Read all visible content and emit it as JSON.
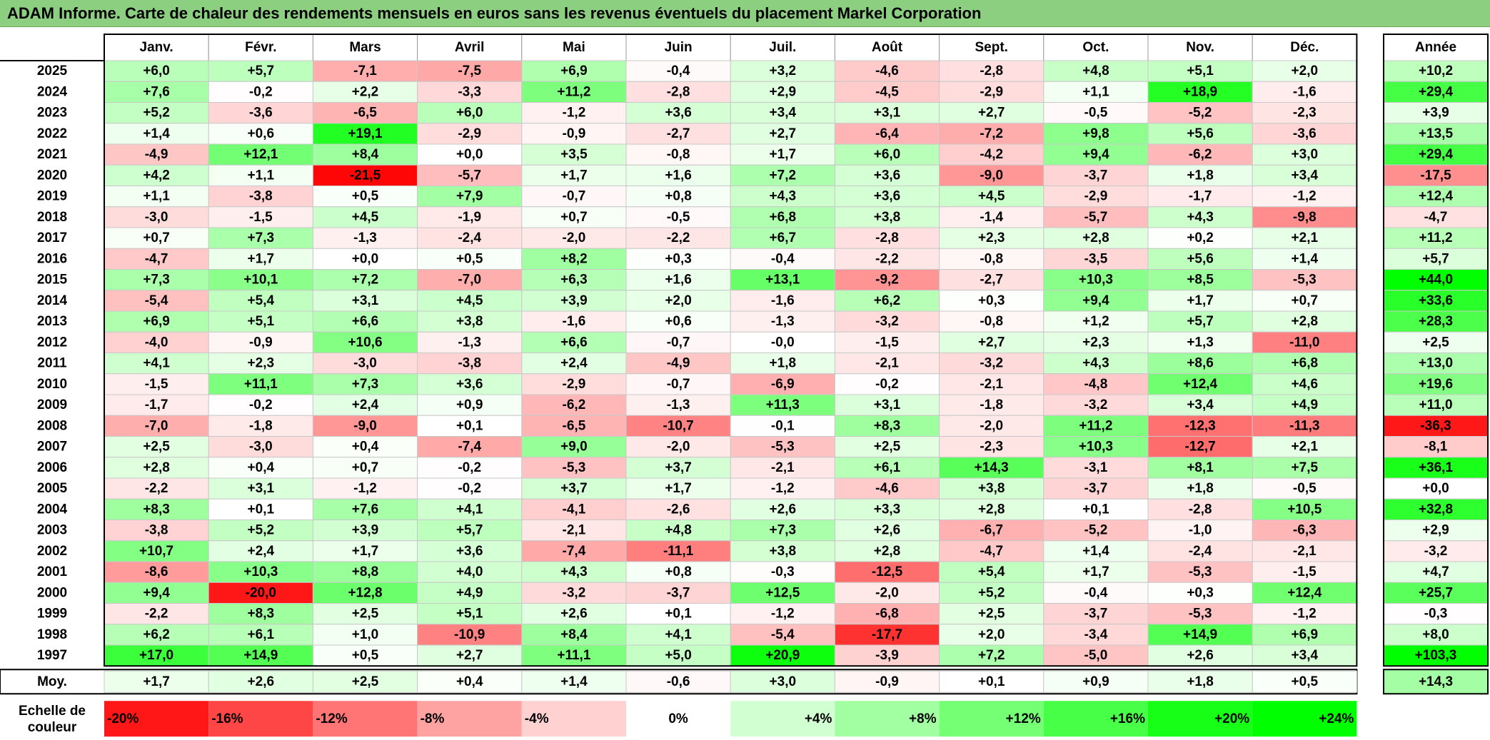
{
  "title": "ADAM Informe. Carte de chaleur des rendements mensuels en euros sans les revenus éventuels du placement Markel Corporation",
  "chart_data": {
    "type": "heatmap",
    "title": "ADAM Informe. Carte de chaleur des rendements mensuels en euros sans les revenus éventuels du placement Markel Corporation",
    "months": [
      "Janv.",
      "Févr.",
      "Mars",
      "Avril",
      "Mai",
      "Juin",
      "Juil.",
      "Août",
      "Sept.",
      "Oct.",
      "Nov.",
      "Déc."
    ],
    "year_header": "Année",
    "rows": [
      {
        "year": "2025",
        "values": [
          "+6,0",
          "+5,7",
          "-7,1",
          "-7,5",
          "+6,9",
          "-0,4",
          "+3,2",
          "-4,6",
          "-2,8",
          "+4,8",
          "+5,1",
          "+2,0"
        ],
        "annual": "+10,2"
      },
      {
        "year": "2024",
        "values": [
          "+7,6",
          "-0,2",
          "+2,2",
          "-3,3",
          "+11,2",
          "-2,8",
          "+2,9",
          "-4,5",
          "-2,9",
          "+1,1",
          "+18,9",
          "-1,6"
        ],
        "annual": "+29,4"
      },
      {
        "year": "2023",
        "values": [
          "+5,2",
          "-3,6",
          "-6,5",
          "+6,0",
          "-1,2",
          "+3,6",
          "+3,4",
          "+3,1",
          "+2,7",
          "-0,5",
          "-5,2",
          "-2,3"
        ],
        "annual": "+3,9"
      },
      {
        "year": "2022",
        "values": [
          "+1,4",
          "+0,6",
          "+19,1",
          "-2,9",
          "-0,9",
          "-2,7",
          "+2,7",
          "-6,4",
          "-7,2",
          "+9,8",
          "+5,6",
          "-3,6"
        ],
        "annual": "+13,5"
      },
      {
        "year": "2021",
        "values": [
          "-4,9",
          "+12,1",
          "+8,4",
          "+0,0",
          "+3,5",
          "-0,8",
          "+1,7",
          "+6,0",
          "-4,2",
          "+9,4",
          "-6,2",
          "+3,0"
        ],
        "annual": "+29,4"
      },
      {
        "year": "2020",
        "values": [
          "+4,2",
          "+1,1",
          "-21,5",
          "-5,7",
          "+1,7",
          "+1,6",
          "+7,2",
          "+3,6",
          "-9,0",
          "-3,7",
          "+1,8",
          "+3,4"
        ],
        "annual": "-17,5"
      },
      {
        "year": "2019",
        "values": [
          "+1,1",
          "-3,8",
          "+0,5",
          "+7,9",
          "-0,7",
          "+0,8",
          "+4,3",
          "+3,6",
          "+4,5",
          "-2,9",
          "-1,7",
          "-1,2"
        ],
        "annual": "+12,4"
      },
      {
        "year": "2018",
        "values": [
          "-3,0",
          "-1,5",
          "+4,5",
          "-1,9",
          "+0,7",
          "-0,5",
          "+6,8",
          "+3,8",
          "-1,4",
          "-5,7",
          "+4,3",
          "-9,8"
        ],
        "annual": "-4,7"
      },
      {
        "year": "2017",
        "values": [
          "+0,7",
          "+7,3",
          "-1,3",
          "-2,4",
          "-2,0",
          "-2,2",
          "+6,7",
          "-2,8",
          "+2,3",
          "+2,8",
          "+0,2",
          "+2,1"
        ],
        "annual": "+11,2"
      },
      {
        "year": "2016",
        "values": [
          "-4,7",
          "+1,7",
          "+0,0",
          "+0,5",
          "+8,2",
          "+0,3",
          "-0,4",
          "-2,2",
          "-0,8",
          "-3,5",
          "+5,6",
          "+1,4"
        ],
        "annual": "+5,7"
      },
      {
        "year": "2015",
        "values": [
          "+7,3",
          "+10,1",
          "+7,2",
          "-7,0",
          "+6,3",
          "+1,6",
          "+13,1",
          "-9,2",
          "-2,7",
          "+10,3",
          "+8,5",
          "-5,3"
        ],
        "annual": "+44,0"
      },
      {
        "year": "2014",
        "values": [
          "-5,4",
          "+5,4",
          "+3,1",
          "+4,5",
          "+3,9",
          "+2,0",
          "-1,6",
          "+6,2",
          "+0,3",
          "+9,4",
          "+1,7",
          "+0,7"
        ],
        "annual": "+33,6"
      },
      {
        "year": "2013",
        "values": [
          "+6,9",
          "+5,1",
          "+6,6",
          "+3,8",
          "-1,6",
          "+0,6",
          "-1,3",
          "-3,2",
          "-0,8",
          "+1,2",
          "+5,7",
          "+2,8"
        ],
        "annual": "+28,3"
      },
      {
        "year": "2012",
        "values": [
          "-4,0",
          "-0,9",
          "+10,6",
          "-1,3",
          "+6,6",
          "-0,7",
          "-0,0",
          "-1,5",
          "+2,7",
          "+2,3",
          "+1,3",
          "-11,0"
        ],
        "annual": "+2,5"
      },
      {
        "year": "2011",
        "values": [
          "+4,1",
          "+2,3",
          "-3,0",
          "-3,8",
          "+2,4",
          "-4,9",
          "+1,8",
          "-2,1",
          "-3,2",
          "+4,3",
          "+8,6",
          "+6,8"
        ],
        "annual": "+13,0"
      },
      {
        "year": "2010",
        "values": [
          "-1,5",
          "+11,1",
          "+7,3",
          "+3,6",
          "-2,9",
          "-0,7",
          "-6,9",
          "-0,2",
          "-2,1",
          "-4,8",
          "+12,4",
          "+4,6"
        ],
        "annual": "+19,6"
      },
      {
        "year": "2009",
        "values": [
          "-1,7",
          "-0,2",
          "+2,4",
          "+0,9",
          "-6,2",
          "-1,3",
          "+11,3",
          "+3,1",
          "-1,8",
          "-3,2",
          "+3,4",
          "+4,9"
        ],
        "annual": "+11,0"
      },
      {
        "year": "2008",
        "values": [
          "-7,0",
          "-1,8",
          "-9,0",
          "+0,1",
          "-6,5",
          "-10,7",
          "-0,1",
          "+8,3",
          "-2,0",
          "+11,2",
          "-12,3",
          "-11,3"
        ],
        "annual": "-36,3"
      },
      {
        "year": "2007",
        "values": [
          "+2,5",
          "-3,0",
          "+0,4",
          "-7,4",
          "+9,0",
          "-2,0",
          "-5,3",
          "+2,5",
          "-2,3",
          "+10,3",
          "-12,7",
          "+2,1"
        ],
        "annual": "-8,1"
      },
      {
        "year": "2006",
        "values": [
          "+2,8",
          "+0,4",
          "+0,7",
          "-0,2",
          "-5,3",
          "+3,7",
          "-2,1",
          "+6,1",
          "+14,3",
          "-3,1",
          "+8,1",
          "+7,5"
        ],
        "annual": "+36,1"
      },
      {
        "year": "2005",
        "values": [
          "-2,2",
          "+3,1",
          "-1,2",
          "-0,2",
          "+3,7",
          "+1,7",
          "-1,2",
          "-4,6",
          "+3,8",
          "-3,7",
          "+1,8",
          "-0,5"
        ],
        "annual": "+0,0"
      },
      {
        "year": "2004",
        "values": [
          "+8,3",
          "+0,1",
          "+7,6",
          "+4,1",
          "-4,1",
          "-2,6",
          "+2,6",
          "+3,3",
          "+2,8",
          "+0,1",
          "-2,8",
          "+10,5"
        ],
        "annual": "+32,8"
      },
      {
        "year": "2003",
        "values": [
          "-3,8",
          "+5,2",
          "+3,9",
          "+5,7",
          "-2,1",
          "+4,8",
          "+7,3",
          "+2,6",
          "-6,7",
          "-5,2",
          "-1,0",
          "-6,3"
        ],
        "annual": "+2,9"
      },
      {
        "year": "2002",
        "values": [
          "+10,7",
          "+2,4",
          "+1,7",
          "+3,6",
          "-7,4",
          "-11,1",
          "+3,8",
          "+2,8",
          "-4,7",
          "+1,4",
          "-2,4",
          "-2,1"
        ],
        "annual": "-3,2"
      },
      {
        "year": "2001",
        "values": [
          "-8,6",
          "+10,3",
          "+8,8",
          "+4,0",
          "+4,3",
          "+0,8",
          "-0,3",
          "-12,5",
          "+5,4",
          "+1,7",
          "-5,3",
          "-1,5"
        ],
        "annual": "+4,7"
      },
      {
        "year": "2000",
        "values": [
          "+9,4",
          "-20,0",
          "+12,8",
          "+4,9",
          "-3,2",
          "-3,7",
          "+12,5",
          "-2,0",
          "+5,2",
          "-0,4",
          "+0,3",
          "+12,4"
        ],
        "annual": "+25,7"
      },
      {
        "year": "1999",
        "values": [
          "-2,2",
          "+8,3",
          "+2,5",
          "+5,1",
          "+2,6",
          "+0,1",
          "-1,2",
          "-6,8",
          "+2,5",
          "-3,7",
          "-5,3",
          "-1,2"
        ],
        "annual": "-0,3"
      },
      {
        "year": "1998",
        "values": [
          "+6,2",
          "+6,1",
          "+1,0",
          "-10,9",
          "+8,4",
          "+4,1",
          "-5,4",
          "-17,7",
          "+2,0",
          "-3,4",
          "+14,9",
          "+6,9"
        ],
        "annual": "+8,0"
      },
      {
        "year": "1997",
        "values": [
          "+17,0",
          "+14,9",
          "+0,5",
          "+2,7",
          "+11,1",
          "+5,0",
          "+20,9",
          "-3,9",
          "+7,2",
          "-5,0",
          "+2,6",
          "+3,4"
        ],
        "annual": "+103,3"
      }
    ],
    "average": {
      "label": "Moy.",
      "values": [
        "+1,7",
        "+2,6",
        "+2,5",
        "+0,4",
        "+1,4",
        "-0,6",
        "+3,0",
        "-0,9",
        "+0,1",
        "+0,9",
        "+1,8",
        "+0,5"
      ],
      "annual": "+14,3"
    },
    "scale": {
      "label": "Echelle de couleur",
      "label_lines": [
        "Echelle de",
        "couleur"
      ],
      "steps": [
        "-20%",
        "-16%",
        "-12%",
        "-8%",
        "-4%",
        "0%",
        "+4%",
        "+8%",
        "+12%",
        "+16%",
        "+20%",
        "+24%"
      ],
      "step_values": [
        -20,
        -16,
        -12,
        -8,
        -4,
        0,
        4,
        8,
        12,
        16,
        20,
        24
      ]
    },
    "colors": {
      "negative_max": "#ff0000",
      "neutral": "#ffffff",
      "positive_max": "#00ff00",
      "title_background": "#8dcf81"
    }
  }
}
